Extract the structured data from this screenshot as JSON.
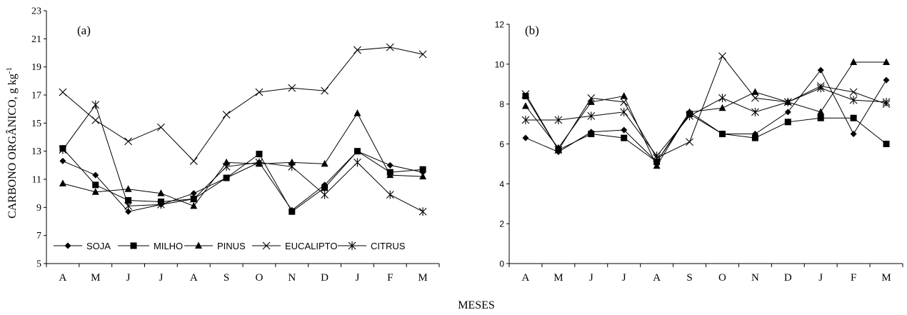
{
  "chart_data": [
    {
      "type": "line",
      "panel_label": "(a)",
      "categories": [
        "A",
        "M",
        "J",
        "J",
        "A",
        "S",
        "O",
        "N",
        "D",
        "J",
        "F",
        "M"
      ],
      "ylim": [
        5,
        23
      ],
      "yticks": [
        5,
        7,
        9,
        11,
        13,
        15,
        17,
        19,
        21,
        23
      ],
      "ylabel": "CARBONO ORGÂNICO, g kg",
      "ylabel_sup": "-1",
      "legend_position": "bottom",
      "series": [
        {
          "name": "SOJA",
          "marker": "diamond",
          "values": [
            12.3,
            11.3,
            8.7,
            9.2,
            10.0,
            11.1,
            12.2,
            8.8,
            10.6,
            13.0,
            12.0,
            11.5
          ]
        },
        {
          "name": "MILHO",
          "marker": "square",
          "values": [
            13.2,
            10.6,
            9.5,
            9.4,
            9.6,
            11.1,
            12.8,
            8.7,
            10.4,
            13.0,
            11.5,
            11.7
          ]
        },
        {
          "name": "PINUS",
          "marker": "triangle",
          "values": [
            10.7,
            10.1,
            10.3,
            10.0,
            9.1,
            12.2,
            12.1,
            12.2,
            12.1,
            15.7,
            11.3,
            11.2
          ]
        },
        {
          "name": "EUCALIPTO",
          "marker": "x",
          "values": [
            17.2,
            15.2,
            13.7,
            14.7,
            12.3,
            15.6,
            17.2,
            17.5,
            17.3,
            20.2,
            20.4,
            19.9
          ]
        },
        {
          "name": "CITRUS",
          "marker": "star",
          "values": [
            13.1,
            16.3,
            9.1,
            9.2,
            9.6,
            11.9,
            12.2,
            11.9,
            9.9,
            12.2,
            9.9,
            8.7
          ]
        }
      ]
    },
    {
      "type": "line",
      "panel_label": "(b)",
      "categories": [
        "A",
        "M",
        "J",
        "J",
        "A",
        "S",
        "O",
        "N",
        "D",
        "J",
        "F",
        "M"
      ],
      "ylim": [
        0,
        12
      ],
      "yticks": [
        0,
        2,
        4,
        6,
        8,
        10,
        12
      ],
      "series": [
        {
          "name": "SOJA",
          "marker": "diamond",
          "values": [
            6.3,
            5.6,
            6.6,
            6.7,
            5.1,
            7.6,
            6.5,
            6.5,
            7.6,
            9.7,
            6.5,
            9.2
          ]
        },
        {
          "name": "MILHO",
          "marker": "square",
          "values": [
            8.4,
            5.7,
            6.5,
            6.3,
            5.1,
            7.5,
            6.5,
            6.3,
            7.1,
            7.3,
            7.3,
            6.0
          ]
        },
        {
          "name": "PINUS",
          "marker": "triangle",
          "values": [
            7.9,
            5.8,
            8.1,
            8.4,
            4.9,
            7.6,
            7.8,
            8.6,
            8.1,
            7.6,
            10.1,
            10.1
          ]
        },
        {
          "name": "EUCALIPTO",
          "marker": "x",
          "values": [
            8.5,
            5.7,
            8.3,
            8.1,
            5.3,
            6.1,
            10.4,
            8.3,
            8.1,
            8.9,
            8.6,
            8.0
          ]
        },
        {
          "name": "CITRUS",
          "marker": "star",
          "values": [
            7.2,
            7.2,
            7.4,
            7.6,
            5.4,
            7.4,
            8.3,
            7.6,
            8.1,
            8.8,
            8.2,
            8.1
          ]
        }
      ]
    }
  ],
  "xlabel": "MESES"
}
